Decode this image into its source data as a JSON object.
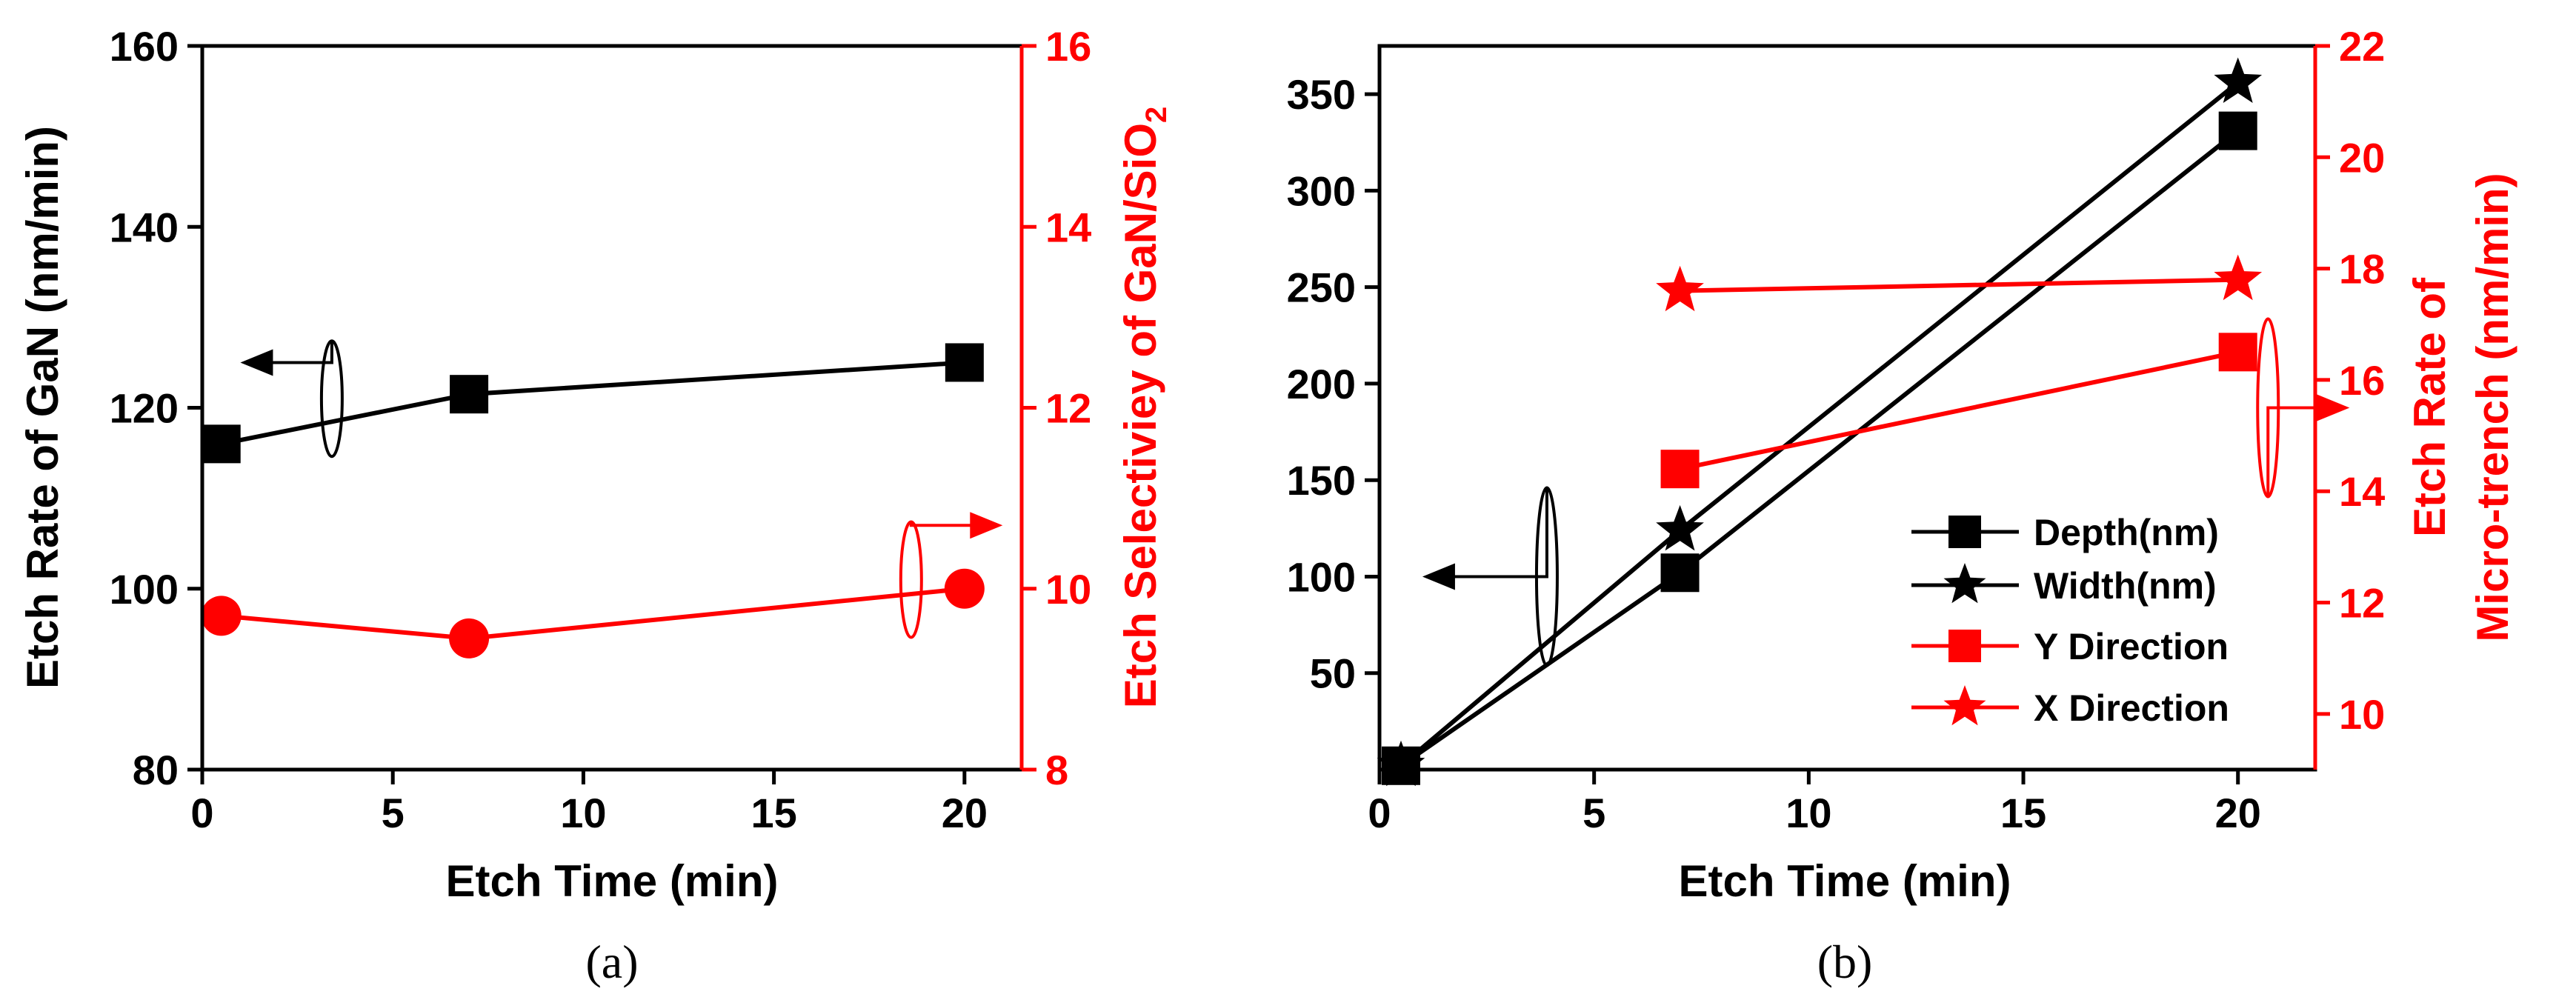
{
  "colors": {
    "black": "#000000",
    "red": "#ff0000"
  },
  "chart_data": [
    {
      "type": "line",
      "caption": "(a)",
      "xlabel": "Etch Time (min)",
      "ylabel_left": "Etch Rate of GaN (nm/min)",
      "ylabel_right": "Etch Selectiviey of GaN/SiO",
      "ylabel_right_sub": "2",
      "xlim": [
        0,
        21.5
      ],
      "ylim_left": [
        80,
        160
      ],
      "ylim_right": [
        8,
        16
      ],
      "xticks": [
        0,
        5,
        10,
        15,
        20
      ],
      "yticks_left": [
        80,
        100,
        120,
        140,
        160
      ],
      "yticks_right": [
        8,
        10,
        12,
        14,
        16
      ],
      "series": [
        {
          "name": "Etch Rate of GaN",
          "axis": "left",
          "color": "#000000",
          "marker": "square",
          "x": [
            0.5,
            7,
            20
          ],
          "values": [
            116,
            121.5,
            125
          ]
        },
        {
          "name": "Etch Selectivity",
          "axis": "right",
          "color": "#ff0000",
          "marker": "circle",
          "x": [
            0.5,
            7,
            20
          ],
          "values": [
            9.7,
            9.45,
            10
          ]
        }
      ],
      "annotations": [
        {
          "arrow": "left",
          "axis": "left",
          "anchor_x": 3.4,
          "anchor_y": 121,
          "tip_x": 1,
          "tip_y": 125
        },
        {
          "arrow": "right",
          "axis": "right",
          "anchor_x": 18.6,
          "anchor_y": 10.1,
          "tip_x": 21,
          "tip_y": 10.7
        }
      ]
    },
    {
      "type": "line",
      "caption": "(b)",
      "xlabel": "Etch Time (min)",
      "ylabel_right_line1": "Etch Rate of",
      "ylabel_right_line2": "Micro-trench (nm/min)",
      "xlim": [
        0,
        21.8
      ],
      "ylim_left": [
        0,
        375
      ],
      "ylim_right": [
        9,
        22
      ],
      "xticks": [
        0,
        5,
        10,
        15,
        20
      ],
      "yticks_left": [
        50,
        100,
        150,
        200,
        250,
        300,
        350
      ],
      "yticks_right": [
        10,
        12,
        14,
        16,
        18,
        20,
        22
      ],
      "series": [
        {
          "name": "Depth(nm)",
          "axis": "left",
          "color": "#000000",
          "marker": "square",
          "x": [
            0.5,
            7,
            20
          ],
          "values": [
            2,
            102,
            331
          ]
        },
        {
          "name": "Width(nm)",
          "axis": "left",
          "color": "#000000",
          "marker": "star",
          "x": [
            0.5,
            7,
            20
          ],
          "values": [
            2,
            124,
            356
          ]
        },
        {
          "name": "Y Direction",
          "axis": "right",
          "color": "#ff0000",
          "marker": "square",
          "x": [
            7,
            20
          ],
          "values": [
            14.4,
            16.5
          ]
        },
        {
          "name": "X Direction",
          "axis": "right",
          "color": "#ff0000",
          "marker": "star",
          "x": [
            7,
            20
          ],
          "values": [
            17.6,
            17.8
          ]
        }
      ],
      "legend_labels": [
        "Depth(nm)",
        "Width(nm)",
        "Y Direction",
        "X Direction"
      ],
      "annotations": [
        {
          "arrow": "left",
          "axis": "left",
          "anchor_x": 3.9,
          "anchor_y": 100,
          "tip_x": 1,
          "tip_y": 100
        },
        {
          "arrow": "right",
          "axis": "right",
          "anchor_x": 20.7,
          "anchor_y": 15.5,
          "tip_x": 22.6,
          "tip_y": 15.5
        }
      ]
    }
  ]
}
